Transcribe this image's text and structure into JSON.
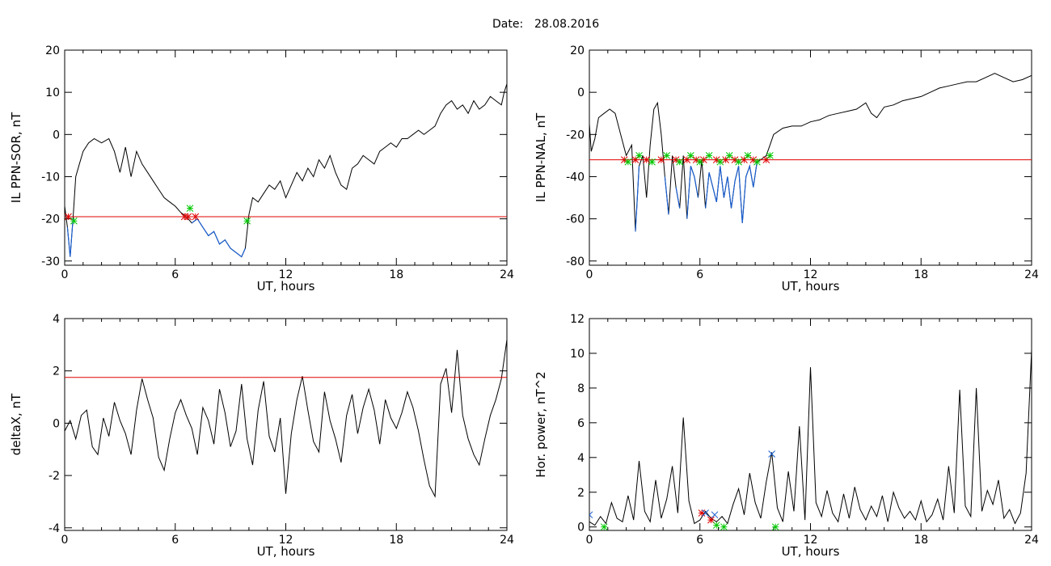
{
  "header": {
    "date_label": "Date:",
    "date_value": "28.08.2016"
  },
  "colors": {
    "trace": "#000000",
    "below_threshold": "#1a5fd0",
    "threshold_line": "#e00000",
    "marker_red": "#e00000",
    "marker_green": "#00c800",
    "marker_blue": "#1a5fd0"
  },
  "chart_data": [
    {
      "type": "line",
      "id": "ppn-sor",
      "ylabel": "IL PPN-SOR, nT",
      "xlabel": "UT, hours",
      "xlim": [
        0,
        24
      ],
      "ylim": [
        -31,
        20
      ],
      "xticks": [
        0,
        6,
        12,
        18,
        24
      ],
      "yticks": [
        -30,
        -20,
        -10,
        0,
        10,
        20
      ],
      "threshold": -19.5,
      "series": [
        {
          "x": [
            0,
            0.15,
            0.3,
            0.45,
            0.6,
            0.8,
            1.0,
            1.3,
            1.6,
            2.0,
            2.4,
            2.7,
            3.0,
            3.3,
            3.6,
            3.9,
            4.2,
            4.5,
            4.8,
            5.1,
            5.4,
            5.7,
            6.0,
            6.3,
            6.6,
            6.9,
            7.2,
            7.5,
            7.8,
            8.1,
            8.4,
            8.7,
            9.0,
            9.3,
            9.6,
            9.8,
            10.0,
            10.2,
            10.5,
            10.8,
            11.1,
            11.4,
            11.7,
            12.0,
            12.3,
            12.6,
            12.9,
            13.2,
            13.5,
            13.8,
            14.1,
            14.4,
            14.7,
            15.0,
            15.3,
            15.6,
            15.9,
            16.2,
            16.5,
            16.8,
            17.1,
            17.4,
            17.7,
            18.0,
            18.3,
            18.6,
            18.9,
            19.2,
            19.5,
            19.8,
            20.1,
            20.4,
            20.7,
            21.0,
            21.3,
            21.6,
            21.9,
            22.2,
            22.5,
            22.8,
            23.1,
            23.4,
            23.7,
            23.85,
            24.0
          ],
          "y": [
            -17,
            -22,
            -29,
            -20,
            -10,
            -7,
            -4,
            -2,
            -1,
            -2,
            -1,
            -4,
            -9,
            -3,
            -10,
            -4,
            -7,
            -9,
            -11,
            -13,
            -15,
            -16,
            -17,
            -18.5,
            -19.5,
            -21,
            -20,
            -22,
            -24,
            -23,
            -26,
            -25,
            -27,
            -28,
            -29,
            -27,
            -19,
            -15,
            -16,
            -14,
            -12,
            -13,
            -11,
            -15,
            -12,
            -9,
            -11,
            -8,
            -10,
            -6,
            -8,
            -5,
            -9,
            -12,
            -13,
            -8,
            -7,
            -5,
            -6,
            -7,
            -4,
            -3,
            -2,
            -3,
            -1,
            -1,
            0,
            1,
            0,
            1,
            2,
            5,
            7,
            8,
            6,
            7,
            5,
            8,
            6,
            7,
            9,
            8,
            7,
            10,
            12
          ]
        }
      ],
      "markers_red_x": [
        0.2,
        6.5,
        6.7,
        7.1
      ],
      "markers_green_x": [
        0.5,
        6.8,
        9.9
      ]
    },
    {
      "type": "line",
      "id": "ppn-nal",
      "ylabel": "IL PPN-NAL, nT",
      "xlabel": "UT, hours",
      "xlim": [
        0,
        24
      ],
      "ylim": [
        -82,
        20
      ],
      "xticks": [
        0,
        6,
        12,
        18,
        24
      ],
      "yticks": [
        -80,
        -60,
        -40,
        -20,
        0,
        20
      ],
      "threshold": -32,
      "series": [
        {
          "x": [
            0,
            0.1,
            0.3,
            0.5,
            0.8,
            1.1,
            1.4,
            1.7,
            2.0,
            2.3,
            2.5,
            2.7,
            2.9,
            3.1,
            3.3,
            3.5,
            3.7,
            3.9,
            4.1,
            4.3,
            4.5,
            4.7,
            4.9,
            5.1,
            5.3,
            5.5,
            5.7,
            5.9,
            6.1,
            6.3,
            6.5,
            6.7,
            6.9,
            7.1,
            7.3,
            7.5,
            7.7,
            7.9,
            8.1,
            8.3,
            8.5,
            8.7,
            8.9,
            9.1,
            9.3,
            9.6,
            9.8,
            10.0,
            10.5,
            11.0,
            11.5,
            12.0,
            12.5,
            13.0,
            13.5,
            14.0,
            14.5,
            15.0,
            15.3,
            15.6,
            16.0,
            16.5,
            17.0,
            17.5,
            18.0,
            18.5,
            19.0,
            19.5,
            20.0,
            20.5,
            21.0,
            21.5,
            22.0,
            22.5,
            23.0,
            23.5,
            24.0
          ],
          "y": [
            -15,
            -28,
            -22,
            -12,
            -10,
            -8,
            -10,
            -20,
            -30,
            -25,
            -66,
            -35,
            -30,
            -50,
            -25,
            -8,
            -5,
            -20,
            -40,
            -58,
            -30,
            -45,
            -55,
            -30,
            -60,
            -35,
            -40,
            -50,
            -32,
            -55,
            -38,
            -45,
            -52,
            -35,
            -50,
            -40,
            -55,
            -42,
            -35,
            -62,
            -40,
            -35,
            -45,
            -33,
            -32,
            -30,
            -25,
            -20,
            -17,
            -16,
            -16,
            -14,
            -13,
            -11,
            -10,
            -9,
            -8,
            -5,
            -10,
            -12,
            -7,
            -6,
            -4,
            -3,
            -2,
            0,
            2,
            3,
            4,
            5,
            5,
            7,
            9,
            7,
            5,
            6,
            8
          ]
        }
      ],
      "markers_red_x": [
        1.9,
        2.5,
        3.1,
        3.9,
        4.7,
        5.3,
        5.8,
        6.2,
        6.9,
        7.4,
        7.9,
        8.4,
        8.9,
        9.6
      ],
      "markers_green_x": [
        2.1,
        2.7,
        3.4,
        4.2,
        4.9,
        5.5,
        6.0,
        6.5,
        7.1,
        7.6,
        8.1,
        8.6,
        9.1,
        9.8
      ]
    },
    {
      "type": "line",
      "id": "deltax",
      "ylabel": "deltaX, nT",
      "xlabel": "UT, hours",
      "xlim": [
        0,
        24
      ],
      "ylim": [
        -4.1,
        4.0
      ],
      "xticks": [
        0,
        6,
        12,
        18,
        24
      ],
      "yticks": [
        -4,
        -2,
        0,
        2,
        4
      ],
      "threshold": 1.75,
      "series": [
        {
          "x": [
            0,
            0.3,
            0.6,
            0.9,
            1.2,
            1.5,
            1.8,
            2.1,
            2.4,
            2.7,
            3.0,
            3.3,
            3.6,
            3.9,
            4.2,
            4.5,
            4.8,
            5.1,
            5.4,
            5.7,
            6.0,
            6.3,
            6.6,
            6.9,
            7.2,
            7.5,
            7.8,
            8.1,
            8.4,
            8.7,
            9.0,
            9.3,
            9.6,
            9.9,
            10.2,
            10.5,
            10.8,
            11.1,
            11.4,
            11.7,
            12.0,
            12.3,
            12.6,
            12.9,
            13.2,
            13.5,
            13.8,
            14.1,
            14.4,
            14.7,
            15.0,
            15.3,
            15.6,
            15.9,
            16.2,
            16.5,
            16.8,
            17.1,
            17.4,
            17.7,
            18.0,
            18.3,
            18.6,
            18.9,
            19.2,
            19.5,
            19.8,
            20.1,
            20.4,
            20.7,
            21.0,
            21.3,
            21.6,
            21.9,
            22.2,
            22.5,
            22.8,
            23.1,
            23.4,
            23.7,
            24.0
          ],
          "y": [
            -0.3,
            0.1,
            -0.6,
            0.3,
            0.5,
            -0.9,
            -1.2,
            0.2,
            -0.5,
            0.8,
            0.1,
            -0.4,
            -1.2,
            0.5,
            1.7,
            0.9,
            0.2,
            -1.3,
            -1.8,
            -0.6,
            0.4,
            0.9,
            0.3,
            -0.2,
            -1.2,
            0.6,
            0.1,
            -0.8,
            1.3,
            0.4,
            -0.9,
            -0.3,
            1.5,
            -0.6,
            -1.6,
            0.5,
            1.6,
            -0.5,
            -1.1,
            0.2,
            -2.7,
            -0.4,
            0.9,
            1.8,
            0.5,
            -0.7,
            -1.1,
            1.2,
            0.1,
            -0.6,
            -1.5,
            0.3,
            1.1,
            -0.4,
            0.6,
            1.3,
            0.5,
            -0.8,
            0.9,
            0.2,
            -0.2,
            0.4,
            1.2,
            0.6,
            -0.3,
            -1.4,
            -2.4,
            -2.8,
            1.5,
            2.1,
            0.4,
            2.8,
            0.3,
            -0.6,
            -1.2,
            -1.6,
            -0.6,
            0.3,
            0.9,
            1.7,
            3.2
          ]
        }
      ]
    },
    {
      "type": "line",
      "id": "hor-power",
      "ylabel": "Hor. power, nT^2",
      "xlabel": "UT, hours",
      "xlim": [
        0,
        24
      ],
      "ylim": [
        -0.2,
        12
      ],
      "xticks": [
        0,
        6,
        12,
        18,
        24
      ],
      "yticks": [
        0,
        2,
        4,
        6,
        8,
        10,
        12
      ],
      "series": [
        {
          "x": [
            0,
            0.3,
            0.6,
            0.9,
            1.2,
            1.5,
            1.8,
            2.1,
            2.4,
            2.7,
            3.0,
            3.3,
            3.6,
            3.9,
            4.2,
            4.5,
            4.8,
            5.1,
            5.4,
            5.7,
            6.0,
            6.3,
            6.6,
            6.9,
            7.2,
            7.5,
            7.8,
            8.1,
            8.4,
            8.7,
            9.0,
            9.3,
            9.6,
            9.9,
            10.2,
            10.5,
            10.8,
            11.1,
            11.4,
            11.7,
            12.0,
            12.3,
            12.6,
            12.9,
            13.2,
            13.5,
            13.8,
            14.1,
            14.4,
            14.7,
            15.0,
            15.3,
            15.6,
            15.9,
            16.2,
            16.5,
            16.8,
            17.1,
            17.4,
            17.7,
            18.0,
            18.3,
            18.6,
            18.9,
            19.2,
            19.5,
            19.8,
            20.1,
            20.4,
            20.7,
            21.0,
            21.3,
            21.6,
            21.9,
            22.2,
            22.5,
            22.8,
            23.1,
            23.4,
            23.7,
            24.0
          ],
          "y": [
            0.3,
            0.1,
            0.6,
            0.2,
            1.4,
            0.5,
            0.3,
            1.8,
            0.4,
            3.8,
            0.9,
            0.3,
            2.7,
            0.5,
            1.6,
            3.5,
            0.8,
            6.3,
            1.5,
            0.2,
            0.4,
            0.9,
            0.5,
            0.3,
            0.6,
            0.2,
            1.3,
            2.2,
            0.7,
            3.1,
            1.4,
            0.5,
            2.6,
            4.3,
            1.1,
            0.3,
            3.2,
            0.9,
            5.8,
            0.4,
            9.2,
            1.4,
            0.6,
            2.1,
            0.8,
            0.3,
            1.9,
            0.5,
            2.3,
            1.0,
            0.4,
            1.2,
            0.6,
            1.8,
            0.3,
            2.0,
            1.1,
            0.5,
            0.9,
            0.4,
            1.5,
            0.3,
            0.7,
            1.6,
            0.4,
            3.5,
            0.8,
            7.9,
            1.2,
            0.6,
            8.0,
            0.9,
            2.1,
            1.3,
            2.7,
            0.5,
            1.0,
            0.2,
            0.8,
            3.1,
            10.2
          ]
        }
      ],
      "markers_blue_x": [
        0.0,
        6.3,
        6.8,
        9.9
      ],
      "markers_blue_y": [
        0.7,
        0.8,
        0.7,
        4.2
      ],
      "markers_red_x": [
        6.1,
        6.6
      ],
      "markers_red_y": [
        0.8,
        0.4
      ],
      "markers_green_x": [
        0.8,
        6.9,
        7.3,
        10.1
      ],
      "markers_green_y": [
        0.0,
        0.1,
        0.0,
        0.0
      ]
    }
  ]
}
